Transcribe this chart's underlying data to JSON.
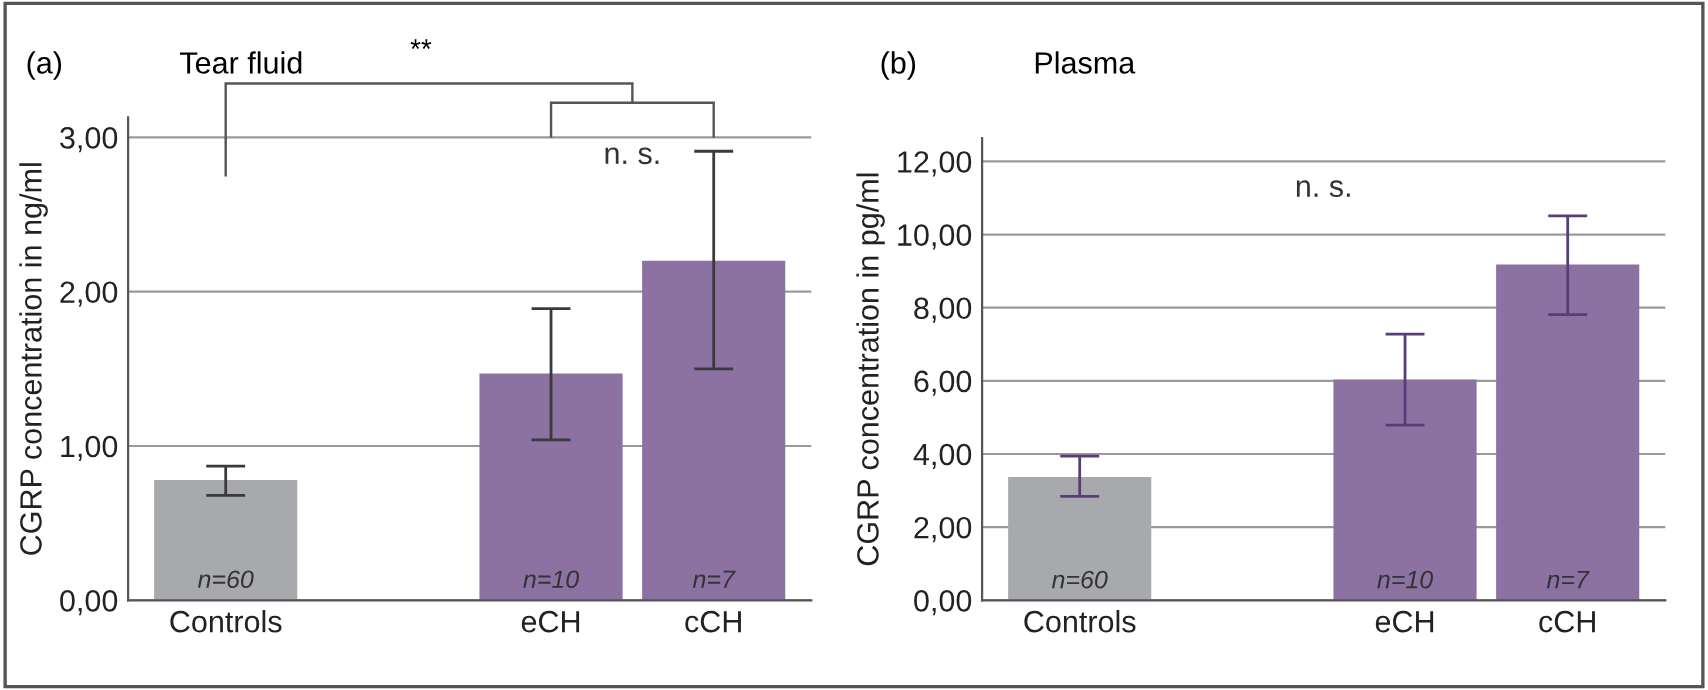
{
  "chart_data": [
    {
      "type": "bar",
      "title": "(a)",
      "subtitle": "Tear fluid",
      "ylabel": "CGRP concentration in ng/ml",
      "categories": [
        "Controls",
        null,
        "eCH",
        "cCH"
      ],
      "values": [
        0.78,
        null,
        1.47,
        2.2
      ],
      "colors": [
        "#a7a9ac",
        null,
        "#8b72a3",
        "#8b72a3"
      ],
      "errors": [
        [
          0.68,
          0.87
        ],
        null,
        [
          1.04,
          1.89
        ],
        [
          1.5,
          2.91
        ]
      ],
      "ylim": [
        0,
        3.13
      ],
      "yticks": [
        {
          "value": 0,
          "label": "0,00"
        },
        {
          "value": 1,
          "label": "1,00"
        },
        {
          "value": 2,
          "label": "2,00"
        },
        {
          "value": 3,
          "label": "3,00"
        }
      ],
      "grid": "y",
      "annotations": [
        "n=60",
        "n=10",
        "n=7",
        "**",
        "n. s."
      ]
    },
    {
      "type": "bar",
      "title": "(b)",
      "subtitle": "Plasma",
      "ylabel": "CGRP concentration in pg/ml",
      "categories": [
        "Controls",
        null,
        "eCH",
        "cCH"
      ],
      "values": [
        3.37,
        null,
        6.04,
        9.18
      ],
      "colors": [
        "#a7a9ac",
        null,
        "#8b72a3",
        "#8b72a3"
      ],
      "errors": [
        [
          2.84,
          3.94
        ],
        null,
        [
          4.79,
          7.28
        ],
        [
          7.81,
          10.51
        ]
      ],
      "ylim": [
        0,
        12.64
      ],
      "yticks": [
        {
          "value": 0,
          "label": "0,00"
        },
        {
          "value": 2,
          "label": "2,00"
        },
        {
          "value": 4,
          "label": "4,00"
        },
        {
          "value": 6,
          "label": "6,00"
        },
        {
          "value": 8,
          "label": "8,00"
        },
        {
          "value": 10,
          "label": "10,00"
        },
        {
          "value": 12,
          "label": "12,00"
        }
      ],
      "grid": "y",
      "annotations": [
        "n=60",
        "n=10",
        "n=7",
        "n. s."
      ]
    }
  ]
}
